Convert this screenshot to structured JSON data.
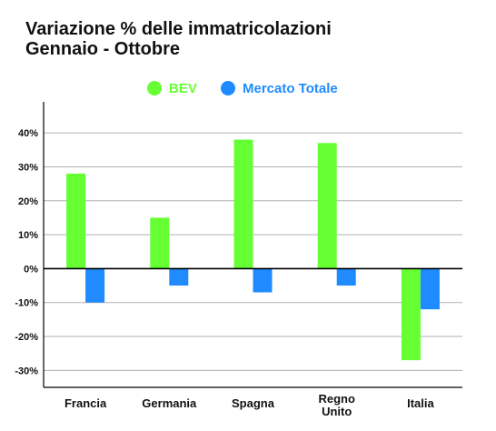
{
  "chart_data": {
    "type": "bar",
    "title": "Variazione % delle immatricolazioni",
    "subtitle": "Gennaio - Ottobre",
    "xlabel": "",
    "ylabel": "",
    "categories": [
      "Francia",
      "Germania",
      "Spagna",
      "Regno Unito",
      "Italia"
    ],
    "category_lines": [
      [
        "Francia"
      ],
      [
        "Germania"
      ],
      [
        "Spagna"
      ],
      [
        "Regno",
        "Unito"
      ],
      [
        "Italia"
      ]
    ],
    "series": [
      {
        "name": "BEV",
        "color": "#66ff33",
        "values": [
          28,
          15,
          38,
          37,
          -27
        ]
      },
      {
        "name": "Mercato Totale",
        "color": "#1f8bff",
        "values": [
          -10,
          -5,
          -7,
          -5,
          -12
        ]
      }
    ],
    "ylim": [
      -35,
      47
    ],
    "y_ticks": [
      40,
      30,
      20,
      10,
      0,
      -10,
      -20,
      -30
    ],
    "y_tick_labels": [
      "40%",
      "30%",
      "20%",
      "10%",
      "0%",
      "-10%",
      "-20%",
      "-30%"
    ],
    "grid": true,
    "legend_position": "top-center"
  }
}
